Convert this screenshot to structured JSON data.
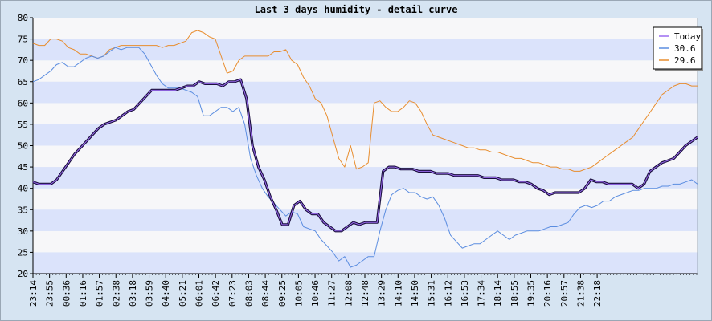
{
  "chart_data": {
    "type": "line",
    "title": "Last 3 days humidity - detail curve",
    "xlabel": "",
    "ylabel": "",
    "ylim": [
      20,
      80
    ],
    "yticks": [
      20,
      25,
      30,
      35,
      40,
      45,
      50,
      55,
      60,
      65,
      70,
      75,
      80
    ],
    "x_tick_labels": [
      "23:14",
      "23:55",
      "00:36",
      "01:16",
      "01:57",
      "02:38",
      "03:18",
      "03:59",
      "04:40",
      "05:21",
      "06:01",
      "06:42",
      "07:23",
      "08:03",
      "08:44",
      "09:25",
      "10:05",
      "10:46",
      "11:27",
      "12:08",
      "12:48",
      "13:29",
      "14:10",
      "14:50",
      "15:31",
      "16:12",
      "16:53",
      "17:34",
      "18:14",
      "18:55",
      "19:35",
      "20:16",
      "20:57",
      "21:38",
      "22:18"
    ],
    "legend_position": "top-right",
    "grid": "alternating horizontal bands",
    "colors": {
      "band_light": "#f7f7f9",
      "band_dark": "#dbe3fb",
      "background": "#d6e4f2"
    },
    "series": [
      {
        "name": "Today",
        "color": "#1a0f3d",
        "legend_color": "#9b6cf0",
        "values": [
          41.5,
          41,
          41,
          41,
          42,
          44,
          46,
          48,
          49.5,
          51,
          52.5,
          54,
          55,
          55.5,
          56,
          57,
          58,
          58.5,
          60,
          61.5,
          63,
          63,
          63,
          63,
          63,
          63.5,
          64,
          64,
          65,
          64.5,
          64.5,
          64.5,
          64,
          65,
          65,
          65.5,
          61,
          50,
          45,
          42,
          38,
          35,
          31.5,
          31.5,
          36,
          37,
          35,
          34,
          34,
          32,
          31,
          30,
          30,
          31,
          32,
          31.5,
          32,
          32,
          32,
          44,
          45,
          45,
          44.5,
          44.5,
          44.5,
          44,
          44,
          44,
          43.5,
          43.5,
          43.5,
          43,
          43,
          43,
          43,
          43,
          42.5,
          42.5,
          42.5,
          42,
          42,
          42,
          41.5,
          41.5,
          41,
          40,
          39.5,
          38.5,
          39,
          39,
          39,
          39,
          39,
          40,
          42,
          41.5,
          41.5,
          41,
          41,
          41,
          41,
          41,
          40,
          41,
          44,
          45,
          46,
          46.5,
          47,
          48.5,
          50,
          51,
          52
        ]
      },
      {
        "name": "30.6",
        "color": "#5b8de0",
        "legend_color": "#5b8de0",
        "values": [
          65,
          65.5,
          66.5,
          67.5,
          69,
          69.5,
          68.5,
          68.5,
          69.5,
          70.5,
          71,
          70.5,
          71,
          72,
          73,
          72.5,
          73,
          73,
          73,
          71.5,
          69,
          66.5,
          64.5,
          63.5,
          63.5,
          63.5,
          63,
          62.5,
          61.5,
          57,
          57,
          58,
          59,
          59,
          58,
          59,
          55,
          47,
          43,
          40,
          38,
          36.5,
          35,
          33.5,
          34.5,
          34,
          31,
          30.5,
          30,
          28,
          26.5,
          25,
          23,
          24,
          21.5,
          22,
          23,
          24,
          24,
          30,
          35,
          38.5,
          39.5,
          40,
          39,
          39,
          38,
          37.5,
          38,
          36,
          33,
          29,
          27.5,
          26,
          26.5,
          27,
          27,
          28,
          29,
          30,
          29,
          28,
          29,
          29.5,
          30,
          30,
          30,
          30.5,
          31,
          31,
          31.5,
          32,
          34,
          35.5,
          36,
          35.5,
          36,
          37,
          37,
          38,
          38.5,
          39,
          39.5,
          39.5,
          40,
          40,
          40,
          40.5,
          40.5,
          41,
          41,
          41.5,
          42,
          41
        ]
      },
      {
        "name": "29.6",
        "color": "#e88d2e",
        "legend_color": "#e88d2e",
        "values": [
          74,
          73.5,
          73.5,
          75,
          75,
          74.5,
          73,
          72.5,
          71.5,
          71.5,
          71,
          70.5,
          71,
          72.5,
          73,
          73.5,
          73.5,
          73.5,
          73.5,
          73.5,
          73.5,
          73.5,
          73,
          73.5,
          73.5,
          74,
          74.5,
          76.5,
          77,
          76.5,
          75.5,
          75,
          71,
          67,
          67.5,
          70,
          71,
          71,
          71,
          71,
          71,
          72,
          72,
          72.5,
          70,
          69,
          66,
          64,
          61,
          60,
          57,
          52,
          47,
          45,
          50,
          44.5,
          45,
          46,
          60,
          60.5,
          59,
          58,
          58,
          59,
          60.5,
          60,
          58,
          55,
          52.5,
          52,
          51.5,
          51,
          50.5,
          50,
          49.5,
          49.5,
          49,
          49,
          48.5,
          48.5,
          48,
          47.5,
          47,
          47,
          46.5,
          46,
          46,
          45.5,
          45,
          45,
          44.5,
          44.5,
          44,
          44,
          44.5,
          45,
          46,
          47,
          48,
          49,
          50,
          51,
          52,
          54,
          56,
          58,
          60,
          62,
          63,
          64,
          64.5,
          64.5,
          64,
          64
        ]
      }
    ]
  }
}
